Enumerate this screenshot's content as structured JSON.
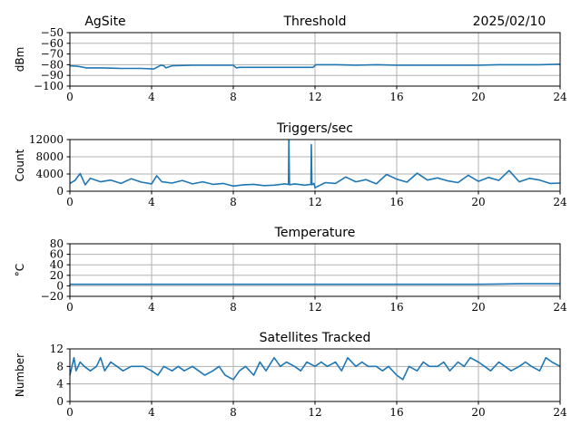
{
  "header": {
    "site": "AgSite",
    "date": "2025/02/10"
  },
  "chart_data": [
    {
      "type": "line",
      "title": "Threshold",
      "xlabel": "",
      "ylabel": "dBm",
      "xlim": [
        0,
        24
      ],
      "ylim": [
        -100,
        -50
      ],
      "xticks": [
        0,
        4,
        8,
        12,
        16,
        20,
        24
      ],
      "yticks": [
        -100,
        -90,
        -80,
        -70,
        -60,
        -50
      ],
      "ytick_labels": [
        "−100",
        "−90",
        "−80",
        "−70",
        "−60",
        "−50"
      ],
      "grid": true,
      "color": "#1f77b4",
      "series": [
        {
          "x": [
            0,
            0.4,
            0.8,
            1.5,
            2.5,
            3.5,
            4.1,
            4.3,
            4.45,
            4.6,
            4.7,
            5,
            6,
            7,
            8,
            8.15,
            8.3,
            9,
            10,
            11,
            11.9,
            12.05,
            12.3,
            13,
            14,
            15,
            16,
            17,
            18,
            19,
            20,
            21,
            22,
            23,
            24
          ],
          "y": [
            -81,
            -81.5,
            -83,
            -83,
            -83.5,
            -83.5,
            -84,
            -82,
            -80.5,
            -81,
            -83,
            -81,
            -80.5,
            -80.5,
            -80.5,
            -83,
            -82.5,
            -82.5,
            -82.5,
            -82.5,
            -82.5,
            -80,
            -80,
            -80,
            -80.5,
            -80,
            -80.5,
            -80.5,
            -80.5,
            -80.5,
            -80.5,
            -80,
            -80,
            -80,
            -79.5
          ]
        }
      ]
    },
    {
      "type": "line",
      "title": "Triggers/sec",
      "xlabel": "",
      "ylabel": "Count",
      "xlim": [
        0,
        24
      ],
      "ylim": [
        0,
        12000
      ],
      "xticks": [
        0,
        4,
        8,
        12,
        16,
        20,
        24
      ],
      "yticks": [
        0,
        4000,
        8000,
        12000
      ],
      "ytick_labels": [
        "0",
        "4000",
        "8000",
        "12000"
      ],
      "grid": true,
      "color": "#1f77b4",
      "series": [
        {
          "x": [
            0,
            0.25,
            0.5,
            0.75,
            1,
            1.5,
            2,
            2.5,
            3,
            3.5,
            4,
            4.25,
            4.5,
            5,
            5.5,
            6,
            6.5,
            7,
            7.5,
            8,
            8.5,
            9,
            9.5,
            10,
            10.5,
            10.7,
            10.72,
            10.75,
            11,
            11.5,
            11.8,
            11.82,
            11.85,
            11.95,
            12,
            12.5,
            13,
            13.5,
            14,
            14.5,
            15,
            15.5,
            16,
            16.5,
            17,
            17.5,
            18,
            18.5,
            19,
            19.5,
            20,
            20.5,
            21,
            21.5,
            22,
            22.5,
            23,
            23.5,
            24
          ],
          "y": [
            1800,
            2500,
            4100,
            1500,
            3000,
            2200,
            2600,
            1800,
            2900,
            2100,
            1700,
            3600,
            2200,
            1900,
            2500,
            1700,
            2200,
            1600,
            1800,
            1200,
            1500,
            1600,
            1300,
            1400,
            1700,
            1600,
            11800,
            1500,
            1700,
            1400,
            1600,
            10800,
            1500,
            1800,
            800,
            2000,
            1800,
            3300,
            2200,
            2700,
            1700,
            3900,
            2800,
            2100,
            4200,
            2600,
            3100,
            2400,
            2000,
            3700,
            2300,
            3200,
            2500,
            4800,
            2200,
            3000,
            2600,
            1800,
            1900
          ]
        }
      ]
    },
    {
      "type": "line",
      "title": "Temperature",
      "xlabel": "",
      "ylabel": "°C",
      "xlim": [
        0,
        24
      ],
      "ylim": [
        -20,
        80
      ],
      "xticks": [
        0,
        4,
        8,
        12,
        16,
        20,
        24
      ],
      "yticks": [
        -20,
        0,
        20,
        40,
        60,
        80
      ],
      "ytick_labels": [
        "−20",
        "0",
        "20",
        "40",
        "60",
        "80"
      ],
      "grid": true,
      "color": "#1f77b4",
      "series": [
        {
          "x": [
            0,
            4,
            8,
            12,
            16,
            20,
            21,
            22,
            24
          ],
          "y": [
            3,
            3,
            3,
            3,
            3,
            3,
            3.5,
            4,
            4
          ]
        }
      ]
    },
    {
      "type": "line",
      "title": "Satellites Tracked",
      "xlabel": "",
      "ylabel": "Number",
      "xlim": [
        0,
        24
      ],
      "ylim": [
        0,
        12
      ],
      "xticks": [
        0,
        4,
        8,
        12,
        16,
        20,
        24
      ],
      "yticks": [
        0,
        4,
        8,
        12
      ],
      "ytick_labels": [
        "0",
        "4",
        "8",
        "12"
      ],
      "grid": true,
      "color": "#1f77b4",
      "series": [
        {
          "x": [
            0,
            0.1,
            0.2,
            0.3,
            0.5,
            0.7,
            1,
            1.3,
            1.5,
            1.7,
            2,
            2.3,
            2.6,
            3,
            3.3,
            3.6,
            4,
            4.3,
            4.6,
            5,
            5.3,
            5.6,
            6,
            6.3,
            6.6,
            7,
            7.3,
            7.6,
            8,
            8.3,
            8.6,
            9,
            9.3,
            9.6,
            10,
            10.3,
            10.6,
            11,
            11.3,
            11.6,
            12,
            12.3,
            12.6,
            13,
            13.3,
            13.6,
            14,
            14.3,
            14.6,
            15,
            15.3,
            15.6,
            16,
            16.3,
            16.6,
            17,
            17.3,
            17.6,
            18,
            18.3,
            18.6,
            19,
            19.3,
            19.6,
            20,
            20.3,
            20.6,
            21,
            21.3,
            21.6,
            22,
            22.3,
            22.6,
            23,
            23.3,
            23.6,
            24
          ],
          "y": [
            6,
            8,
            10,
            7,
            9,
            8,
            7,
            8,
            10,
            7,
            9,
            8,
            7,
            8,
            8,
            8,
            7,
            6,
            8,
            7,
            8,
            7,
            8,
            7,
            6,
            7,
            8,
            6,
            5,
            7,
            8,
            6,
            9,
            7,
            10,
            8,
            9,
            8,
            7,
            9,
            8,
            9,
            8,
            9,
            7,
            10,
            8,
            9,
            8,
            8,
            7,
            8,
            6,
            5,
            8,
            7,
            9,
            8,
            8,
            9,
            7,
            9,
            8,
            10,
            9,
            8,
            7,
            9,
            8,
            7,
            8,
            9,
            8,
            7,
            10,
            9,
            8
          ]
        }
      ]
    }
  ]
}
